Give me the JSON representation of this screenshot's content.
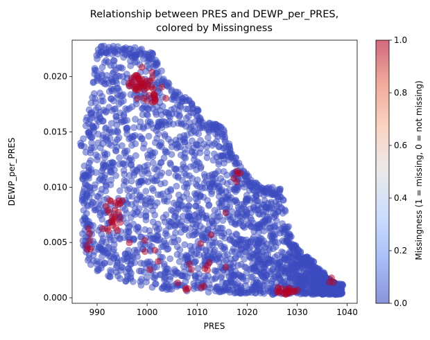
{
  "chart_data": {
    "type": "scatter",
    "title_lines": [
      "Relationship between PRES and DEWP_per_PRES,",
      "colored by Missingness"
    ],
    "xlabel": "PRES",
    "ylabel": "DEWP_per_PRES",
    "xlim": [
      985,
      1042
    ],
    "ylim": [
      -0.0005,
      0.0233
    ],
    "xticks": [
      990,
      1000,
      1010,
      1020,
      1030,
      1040
    ],
    "yticks": [
      0.0,
      0.005,
      0.01,
      0.015,
      0.02
    ],
    "ytick_labels": [
      "0.000",
      "0.005",
      "0.010",
      "0.015",
      "0.020"
    ],
    "point_alpha": 0.5,
    "colormap": "coolwarm",
    "colors": {
      "not_missing": "#3b4cc0",
      "missing": "#b40426"
    },
    "colorbar": {
      "label": "Missingness (1 = missing, 0 = not missing)",
      "ticks": [
        0.0,
        0.2,
        0.4,
        0.6,
        0.8,
        1.0
      ],
      "tick_labels": [
        "0.0",
        "0.2",
        "0.4",
        "0.6",
        "0.8",
        "1.0"
      ],
      "stops": [
        "#3b4cc0",
        "#6f92f3",
        "#aac7fd",
        "#dddddd",
        "#f7b89c",
        "#e7745b",
        "#b40426"
      ]
    },
    "envelope": {
      "pres": [
        987,
        988,
        989,
        990,
        991,
        992,
        993,
        994,
        995,
        996,
        997,
        998,
        999,
        1000,
        1001,
        1002,
        1003,
        1004,
        1005,
        1006,
        1007,
        1008,
        1009,
        1010,
        1011,
        1012,
        1013,
        1014,
        1015,
        1016,
        1017,
        1018,
        1019,
        1020,
        1021,
        1022,
        1023,
        1024,
        1025,
        1026,
        1027,
        1028,
        1029,
        1030,
        1031,
        1032,
        1033,
        1034,
        1035,
        1036,
        1037,
        1038,
        1039
      ],
      "upper": [
        0.0142,
        0.0165,
        0.0185,
        0.0229,
        0.0229,
        0.0228,
        0.0228,
        0.0228,
        0.0228,
        0.0227,
        0.0226,
        0.0227,
        0.0226,
        0.0224,
        0.0222,
        0.0214,
        0.0205,
        0.0197,
        0.0188,
        0.0186,
        0.0185,
        0.0183,
        0.0177,
        0.0172,
        0.0163,
        0.016,
        0.0158,
        0.0157,
        0.0154,
        0.0148,
        0.0132,
        0.0125,
        0.0118,
        0.0112,
        0.0108,
        0.0103,
        0.0101,
        0.0101,
        0.01,
        0.0099,
        0.0099,
        0.007,
        0.0052,
        0.0046,
        0.0041,
        0.0037,
        0.0035,
        0.0027,
        0.0025,
        0.0019,
        0.0015,
        0.0013,
        0.0013
      ],
      "lower": [
        0.005,
        0.0035,
        0.0028,
        0.0024,
        0.0024,
        0.002,
        0.0018,
        0.0016,
        0.0015,
        0.0014,
        0.0013,
        0.0012,
        0.0011,
        0.001,
        0.0009,
        0.0008,
        0.0008,
        0.0007,
        0.0007,
        0.0007,
        0.0006,
        0.0006,
        0.0006,
        0.0006,
        0.0005,
        0.0005,
        0.0005,
        0.0005,
        0.0005,
        0.0005,
        0.0004,
        0.0004,
        0.0004,
        0.0004,
        0.0004,
        0.0004,
        0.0003,
        0.0003,
        0.0003,
        0.0003,
        0.0003,
        0.0003,
        0.0003,
        0.0003,
        0.0003,
        0.0003,
        0.0003,
        0.0003,
        0.0003,
        0.0003,
        0.0003,
        0.0003,
        0.0003
      ]
    },
    "missing_clusters": [
      {
        "pres": 998.5,
        "dewp_per_pres": 0.0193,
        "spread_x": 1.5,
        "spread_y": 0.0006,
        "count": 40
      },
      {
        "pres": 1001.5,
        "dewp_per_pres": 0.0181,
        "spread_x": 1.0,
        "spread_y": 0.0003,
        "count": 12
      },
      {
        "pres": 993.0,
        "dewp_per_pres": 0.0068,
        "spread_x": 0.8,
        "spread_y": 0.0006,
        "count": 18
      },
      {
        "pres": 993.5,
        "dewp_per_pres": 0.0086,
        "spread_x": 0.8,
        "spread_y": 0.0003,
        "count": 8
      },
      {
        "pres": 988.5,
        "dewp_per_pres": 0.0052,
        "spread_x": 0.5,
        "spread_y": 0.0004,
        "count": 6
      },
      {
        "pres": 1017.5,
        "dewp_per_pres": 0.011,
        "spread_x": 0.5,
        "spread_y": 0.0003,
        "count": 5
      },
      {
        "pres": 1028.0,
        "dewp_per_pres": 0.0006,
        "spread_x": 1.5,
        "spread_y": 0.0002,
        "count": 20
      },
      {
        "pres": 1037.0,
        "dewp_per_pres": 0.0017,
        "spread_x": 0.4,
        "spread_y": 0.0002,
        "count": 3
      },
      {
        "pres": 1011.5,
        "dewp_per_pres": 0.0028,
        "spread_x": 1.0,
        "spread_y": 0.0002,
        "count": 5
      },
      {
        "pres": 1008.5,
        "dewp_per_pres": 0.001,
        "spread_x": 1.5,
        "spread_y": 0.0002,
        "count": 6
      },
      {
        "pres": 1000.0,
        "dewp_per_pres": 0.0038,
        "spread_x": 2.0,
        "spread_y": 0.001,
        "count": 6
      },
      {
        "pres": 1012.0,
        "dewp_per_pres": 0.0055,
        "spread_x": 2.0,
        "spread_y": 0.0015,
        "count": 5
      }
    ],
    "non_missing_point_count": 2400
  }
}
